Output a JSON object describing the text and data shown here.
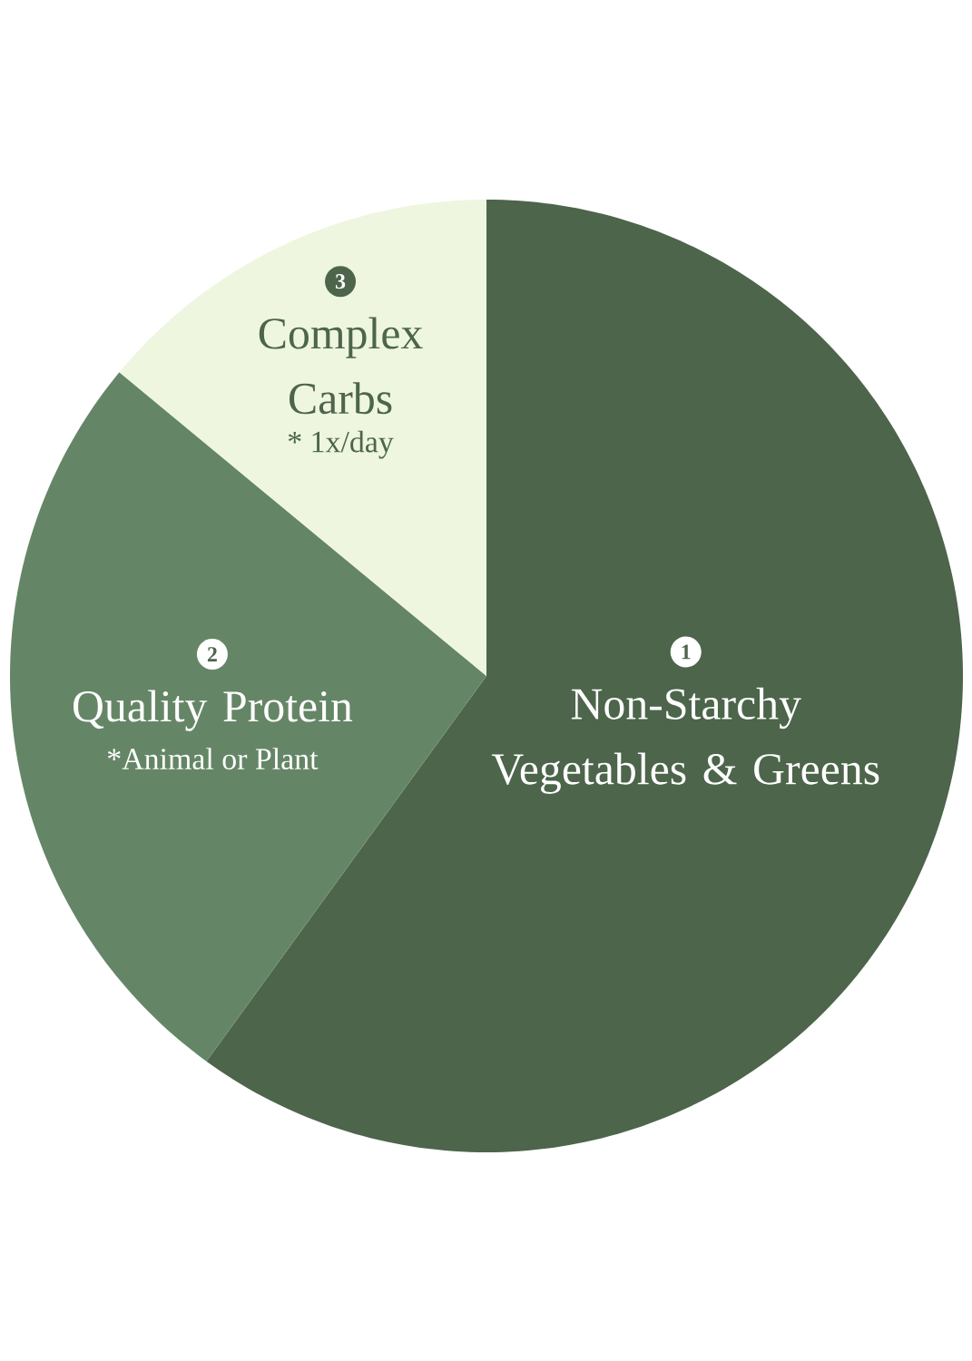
{
  "chart_data": {
    "type": "pie",
    "categories": [
      "Non-Starchy Vegetables & Greens",
      "Quality Protein",
      "Complex Carbs"
    ],
    "values": [
      60,
      26,
      14
    ],
    "colors": [
      "#4d654b",
      "#658666",
      "#eef6e0"
    ],
    "annotations": [
      "1",
      "2",
      "3",
      "*Animal or Plant",
      "* 1x/day"
    ]
  }
}
